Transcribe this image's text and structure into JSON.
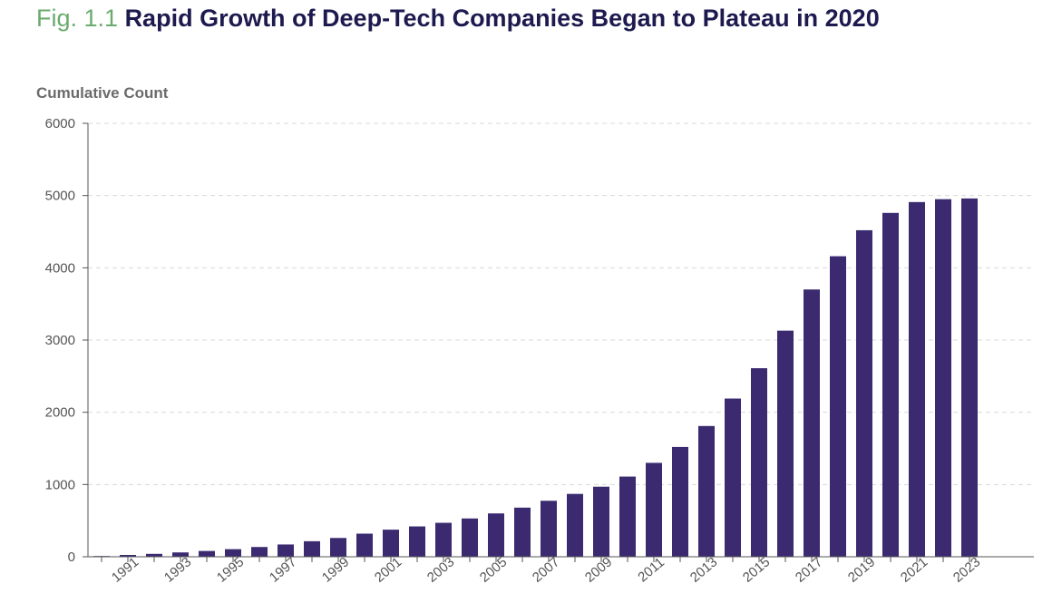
{
  "figure": {
    "number": "Fig. 1.1",
    "title": "Rapid Growth of Deep-Tech Companies Began to Plateau in 2020"
  },
  "colors": {
    "bar": "#3b2a70",
    "figure_number": "#6aab6e",
    "title": "#1c1a4e",
    "grid": "#d9d9d9",
    "axis": "#555555"
  },
  "chart_data": {
    "type": "bar",
    "ylabel": "Cumulative Count",
    "xlabel": "",
    "ylim": [
      0,
      6000
    ],
    "yticks": [
      0,
      1000,
      2000,
      3000,
      4000,
      5000,
      6000
    ],
    "grid": true,
    "categories": [
      "1990",
      "1991",
      "1992",
      "1993",
      "1994",
      "1995",
      "1996",
      "1997",
      "1998",
      "1999",
      "2000",
      "2001",
      "2002",
      "2003",
      "2004",
      "2005",
      "2006",
      "2007",
      "2008",
      "2009",
      "2010",
      "2011",
      "2012",
      "2013",
      "2014",
      "2015",
      "2016",
      "2017",
      "2018",
      "2019",
      "2020",
      "2021",
      "2022",
      "2023"
    ],
    "xtick_labels": [
      "1991",
      "1993",
      "1995",
      "1997",
      "1999",
      "2001",
      "2003",
      "2005",
      "2007",
      "2009",
      "2011",
      "2013",
      "2015",
      "2017",
      "2019",
      "2021",
      "2023"
    ],
    "values": [
      10,
      25,
      40,
      60,
      80,
      105,
      135,
      170,
      215,
      260,
      320,
      375,
      420,
      470,
      530,
      600,
      680,
      775,
      870,
      970,
      1110,
      1300,
      1520,
      1810,
      2190,
      2610,
      3130,
      3700,
      4160,
      4520,
      4760,
      4910,
      4950,
      4960
    ]
  }
}
